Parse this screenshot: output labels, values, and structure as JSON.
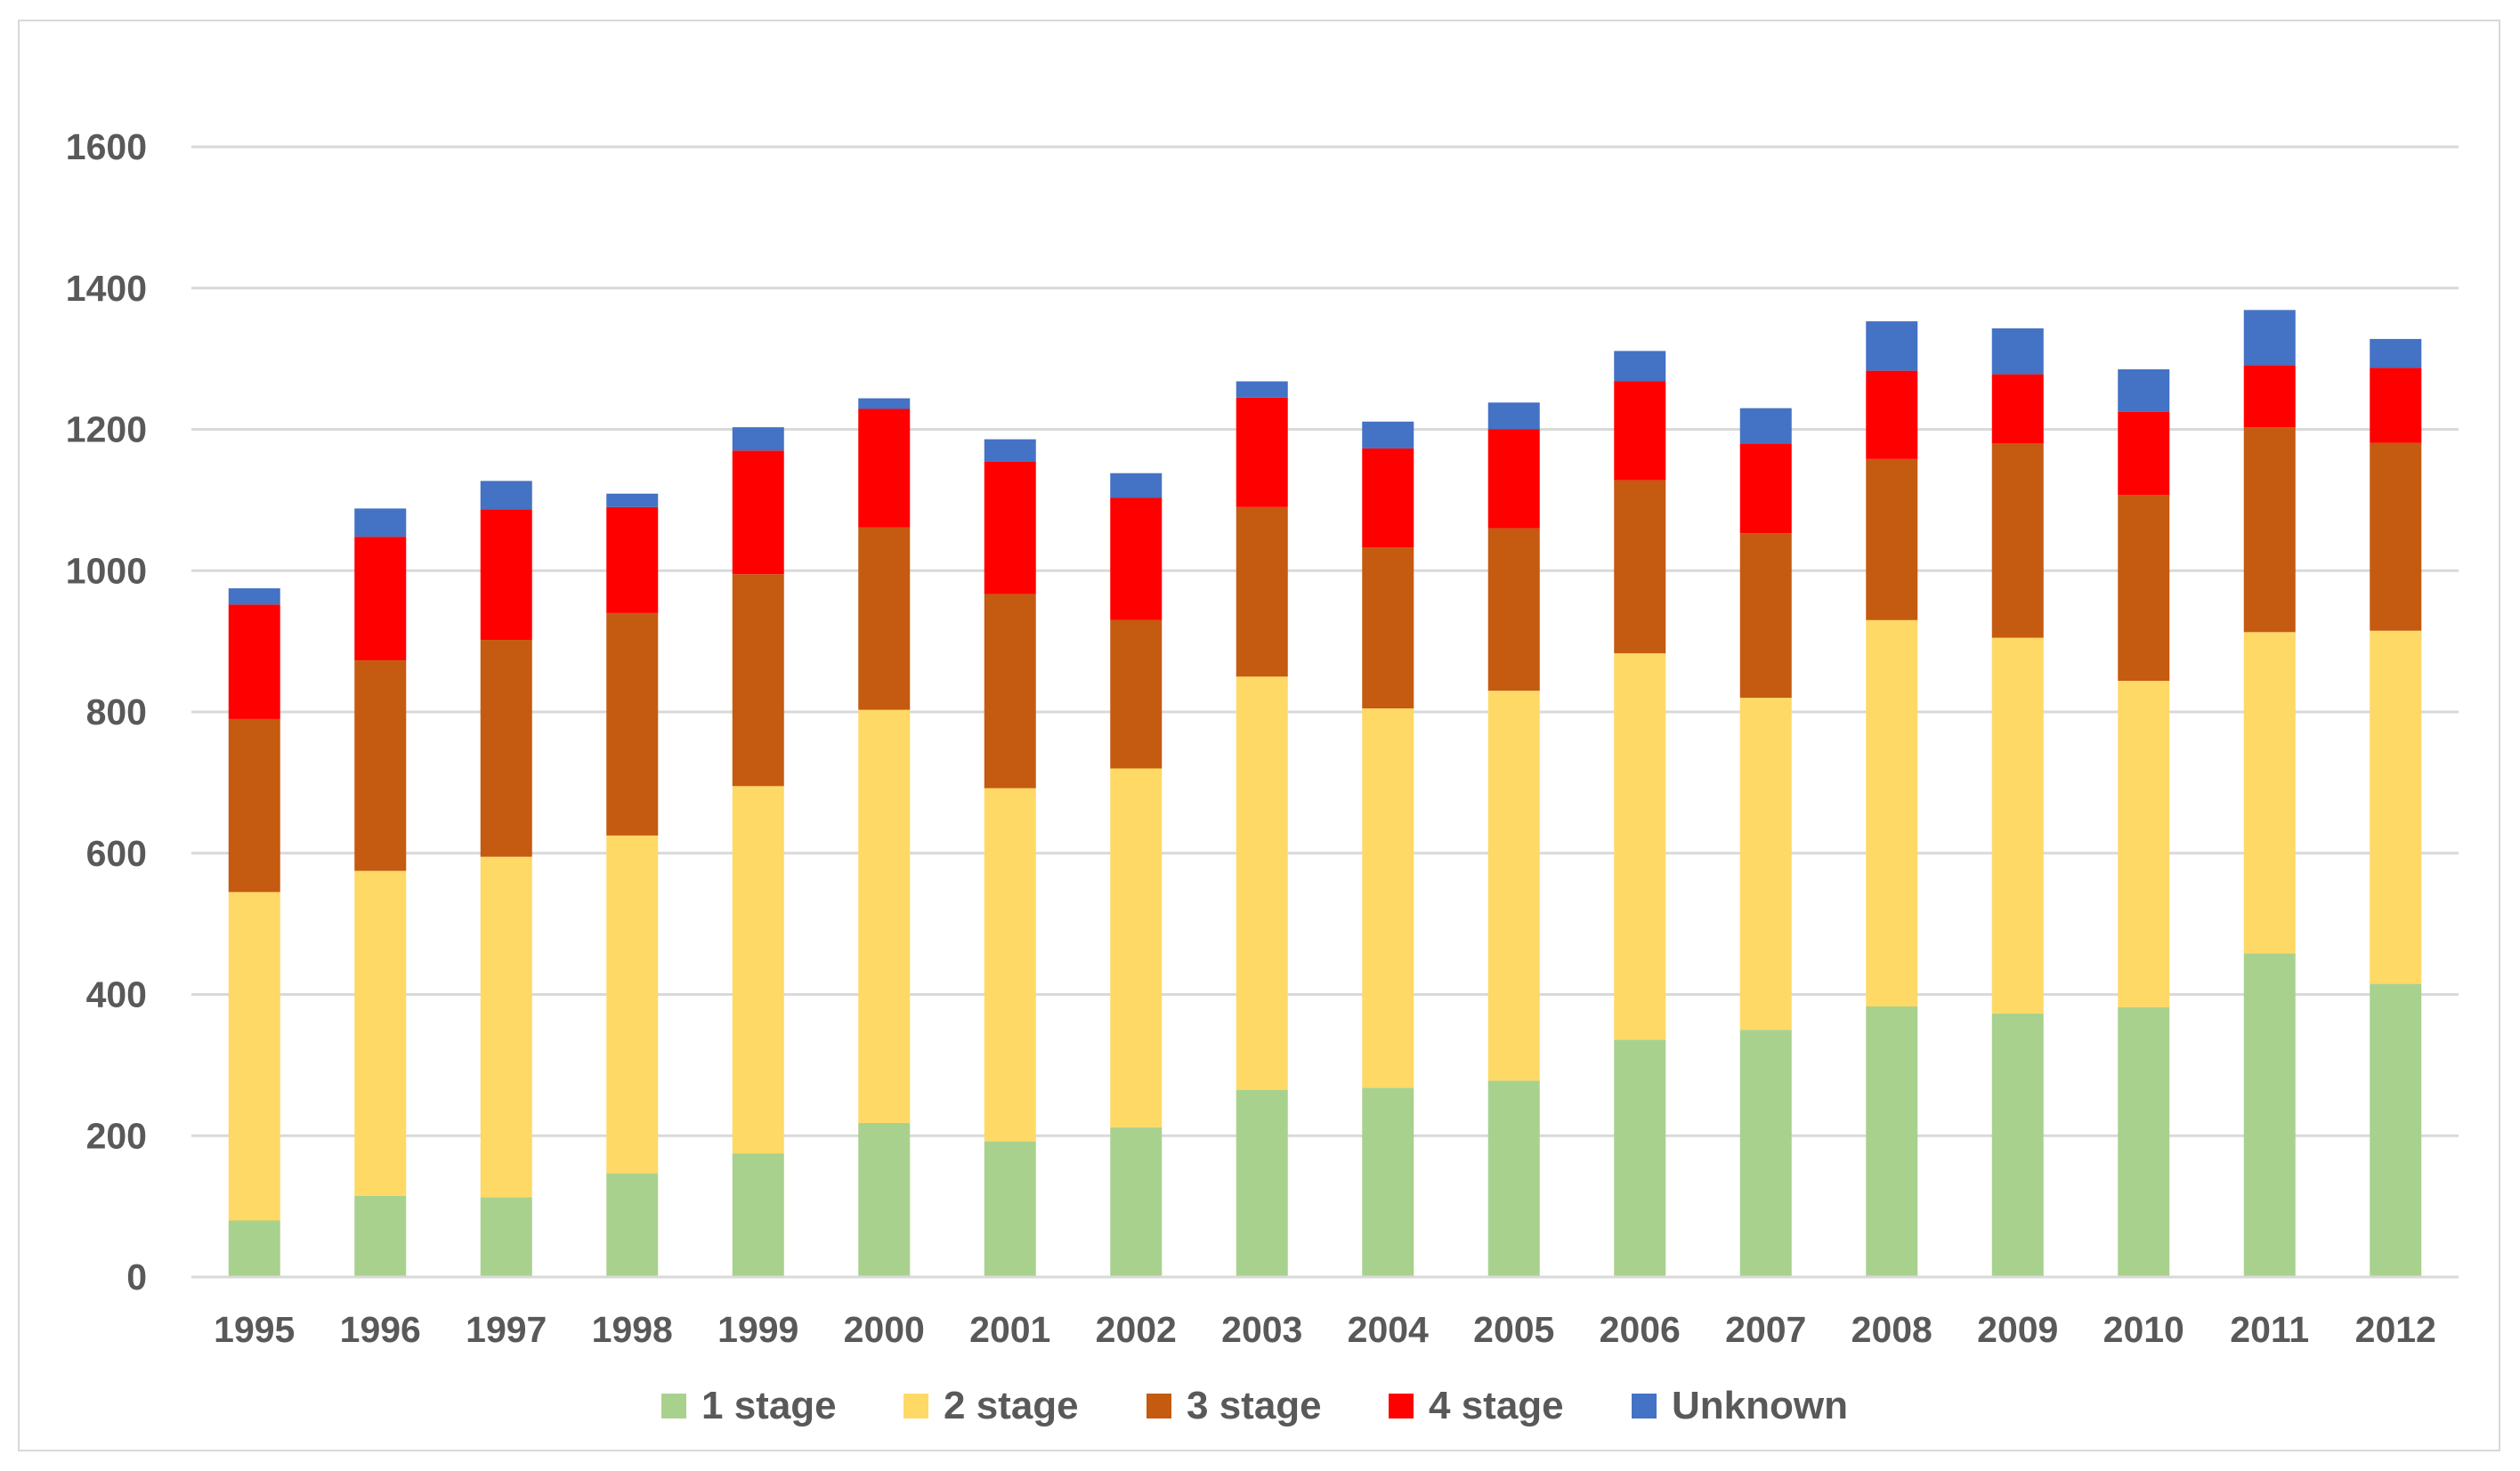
{
  "chart_data": {
    "type": "bar",
    "stacked": true,
    "title": "",
    "xlabel": "",
    "ylabel": "",
    "ylim": [
      0,
      1600
    ],
    "yticks": [
      0,
      200,
      400,
      600,
      800,
      1000,
      1200,
      1400,
      1600
    ],
    "yticks_text": [
      "0",
      "200",
      "400",
      "600",
      "800",
      "1000",
      "1200",
      "1400",
      "1600"
    ],
    "grid": true,
    "legend_position": "bottom",
    "categories": [
      "1995",
      "1996",
      "1997",
      "1998",
      "1999",
      "2000",
      "2001",
      "2002",
      "2003",
      "2004",
      "2005",
      "2006",
      "2007",
      "2008",
      "2009",
      "2010",
      "2011",
      "2012"
    ],
    "series": [
      {
        "name": "1 stage",
        "color": "#a9d18e",
        "values": [
          80,
          115,
          113,
          147,
          175,
          218,
          192,
          212,
          265,
          268,
          278,
          336,
          350,
          383,
          373,
          382,
          458,
          415
        ]
      },
      {
        "name": "2 stage",
        "color": "#ffd966",
        "values": [
          465,
          460,
          482,
          478,
          520,
          585,
          500,
          508,
          585,
          537,
          552,
          547,
          470,
          547,
          532,
          462,
          455,
          500
        ]
      },
      {
        "name": "3 stage",
        "color": "#c55a11",
        "values": [
          245,
          298,
          307,
          315,
          300,
          258,
          275,
          210,
          240,
          228,
          230,
          245,
          233,
          228,
          275,
          263,
          290,
          266
        ]
      },
      {
        "name": "4 stage",
        "color": "#ff0000",
        "values": [
          162,
          175,
          185,
          150,
          175,
          168,
          187,
          173,
          155,
          140,
          140,
          140,
          127,
          125,
          98,
          118,
          88,
          106
        ]
      },
      {
        "name": "Unknown",
        "color": "#4472c4",
        "values": [
          23,
          40,
          40,
          19,
          33,
          15,
          32,
          35,
          23,
          38,
          38,
          43,
          50,
          70,
          65,
          60,
          78,
          41
        ]
      }
    ]
  }
}
